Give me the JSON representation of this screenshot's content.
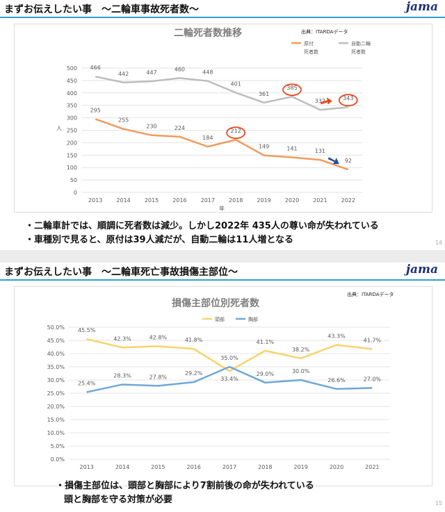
{
  "slide1": {
    "title": "まずお伝えしたい事　～二輪車事故死者数～",
    "logo": "jama",
    "source": "出典：ITARDAデータ",
    "bullets": [
      "・二輪車計では、順調に死者数は減少。しかし2022年 435人の尊い命が失われている",
      "・車種別で見ると、原付は39人減だが、自動二輪は11人増となる"
    ],
    "page_number": "14"
  },
  "slide2": {
    "title": "まずお伝えしたい事　～二輪車死亡事故損傷主部位～",
    "logo": "jama",
    "source": "出典：ITARDAデータ",
    "bullets": [
      "・損傷主部位は、頭部と胸部により7割前後の命が失われている",
      "頭と胸部を守る対策が必要"
    ],
    "page_number": "15"
  },
  "chart_data": [
    {
      "type": "line",
      "title": "二輪死者数推移",
      "xlabel": "年",
      "ylabel": "人",
      "ylim": [
        0,
        500
      ],
      "yticks": [
        0,
        50,
        100,
        150,
        200,
        250,
        300,
        350,
        400,
        450,
        500
      ],
      "grid": true,
      "legend_position": "top-right",
      "categories": [
        "2013",
        "2014",
        "2015",
        "2016",
        "2017",
        "2018",
        "2019",
        "2020",
        "2021",
        "2022"
      ],
      "series": [
        {
          "name": "原付\n死者数",
          "color": "#f29a5c",
          "values": [
            295,
            255,
            230,
            224,
            184,
            212,
            149,
            141,
            131,
            92
          ]
        },
        {
          "name": "自動二輪\n死者数",
          "color": "#bdbdbd",
          "values": [
            466,
            442,
            447,
            460,
            448,
            401,
            361,
            385,
            332,
            343
          ]
        }
      ],
      "highlight_circles": [
        {
          "series": 0,
          "x": "2018"
        },
        {
          "series": 1,
          "x": "2020"
        },
        {
          "series": 1,
          "x": "2022"
        }
      ],
      "arrows": [
        {
          "color": "#e8471b",
          "near": "2022",
          "series": 1
        },
        {
          "color": "#1f4fa8",
          "near": "2022",
          "series": 0
        }
      ]
    },
    {
      "type": "line",
      "title": "損傷主部位別死者数",
      "xlabel": "",
      "ylabel": "",
      "ylim": [
        0,
        50
      ],
      "yticks": [
        "0.0%",
        "5.0%",
        "10.0%",
        "15.0%",
        "20.0%",
        "25.0%",
        "30.0%",
        "35.0%",
        "40.0%",
        "45.0%",
        "50.0%"
      ],
      "grid": true,
      "legend_position": "top",
      "categories": [
        "2013",
        "2014",
        "2015",
        "2016",
        "2017",
        "2018",
        "2019",
        "2020",
        "2021"
      ],
      "series": [
        {
          "name": "頭部",
          "color": "#f7d46a",
          "values": [
            45.5,
            42.3,
            42.8,
            41.8,
            33.4,
            41.1,
            38.2,
            43.3,
            41.7
          ],
          "labels": [
            "45.5%",
            "42.3%",
            "42.8%",
            "41.8%",
            "33.4%",
            "41.1%",
            "38.2%",
            "43.3%",
            "41.7%"
          ]
        },
        {
          "name": "胸部",
          "color": "#6ea8d8",
          "values": [
            25.4,
            28.3,
            27.8,
            29.2,
            35.0,
            29.0,
            30.0,
            26.6,
            27.0
          ],
          "labels": [
            "25.4%",
            "28.3%",
            "27.8%",
            "29.2%",
            "35.0%",
            "29.0%",
            "30.0%",
            "26.6%",
            "27.0%"
          ]
        }
      ]
    }
  ]
}
